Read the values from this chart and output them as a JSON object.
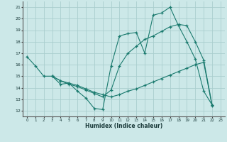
{
  "xlabel": "Humidex (Indice chaleur)",
  "xlim": [
    -0.5,
    23.5
  ],
  "ylim": [
    11.5,
    21.5
  ],
  "xticks": [
    0,
    1,
    2,
    3,
    4,
    5,
    6,
    7,
    8,
    9,
    10,
    11,
    12,
    13,
    14,
    15,
    16,
    17,
    18,
    19,
    20,
    21,
    22,
    23
  ],
  "yticks": [
    12,
    13,
    14,
    15,
    16,
    17,
    18,
    19,
    20,
    21
  ],
  "bg_color": "#cce8e8",
  "grid_color": "#aacece",
  "line_color": "#1a7a6e",
  "lines": [
    {
      "x": [
        0,
        1,
        2,
        3,
        4,
        5,
        6,
        7,
        8,
        9,
        10,
        11,
        12,
        13,
        14,
        15,
        16,
        17,
        18,
        19,
        20,
        21,
        22
      ],
      "y": [
        16.7,
        15.9,
        15.0,
        15.0,
        14.3,
        14.4,
        13.7,
        13.1,
        12.2,
        12.1,
        15.9,
        18.5,
        18.7,
        18.8,
        17.0,
        20.3,
        20.5,
        21.0,
        19.4,
        18.0,
        16.5,
        13.7,
        12.5
      ]
    },
    {
      "x": [
        3,
        4,
        5,
        6,
        7,
        8,
        9,
        10,
        11,
        12,
        13,
        14,
        15,
        16,
        17,
        18,
        19,
        20,
        21,
        22
      ],
      "y": [
        15.0,
        14.6,
        14.4,
        14.2,
        13.9,
        13.6,
        13.4,
        13.2,
        13.4,
        13.7,
        13.9,
        14.2,
        14.5,
        14.8,
        15.1,
        15.4,
        15.7,
        16.0,
        16.2,
        12.4
      ]
    },
    {
      "x": [
        3,
        4,
        5,
        6,
        7,
        8,
        9,
        10,
        11,
        12,
        13,
        14,
        15,
        16,
        17,
        18,
        19,
        20,
        21,
        22
      ],
      "y": [
        15.0,
        14.6,
        14.3,
        14.1,
        13.8,
        13.5,
        13.2,
        13.8,
        15.9,
        17.0,
        17.6,
        18.2,
        18.5,
        18.9,
        19.3,
        19.5,
        19.4,
        18.0,
        16.4,
        12.5
      ]
    }
  ]
}
